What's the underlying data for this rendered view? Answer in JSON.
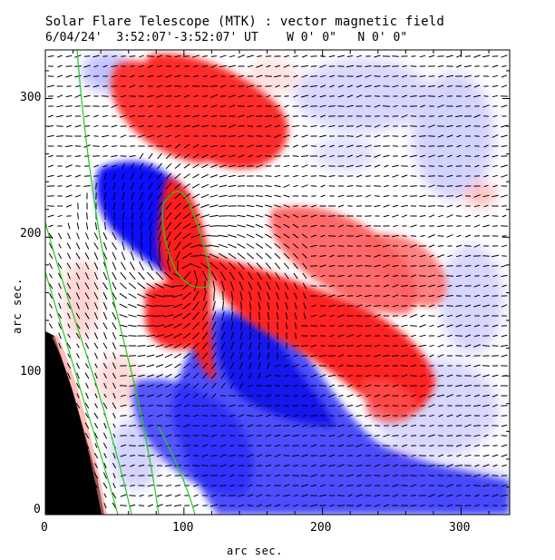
{
  "title_line1": "Solar Flare Telescope (MTK) : vector magnetic field",
  "title_line2": "6/04/24'  3:52:07'-3:52:07' UT    W 0' 0\"   N 0' 0\"",
  "axes": {
    "xlabel": "arc sec.",
    "ylabel": "arc sec.",
    "xticks": [
      "0",
      "100",
      "200",
      "300"
    ],
    "yticks": [
      "0",
      "100",
      "200",
      "300"
    ],
    "xlim": [
      0,
      335
    ],
    "ylim": [
      0,
      335
    ]
  },
  "colors": {
    "positive": "#ff2020",
    "negative": "#1a1aff",
    "contour": "#22cc22",
    "limb": "#000000"
  }
}
